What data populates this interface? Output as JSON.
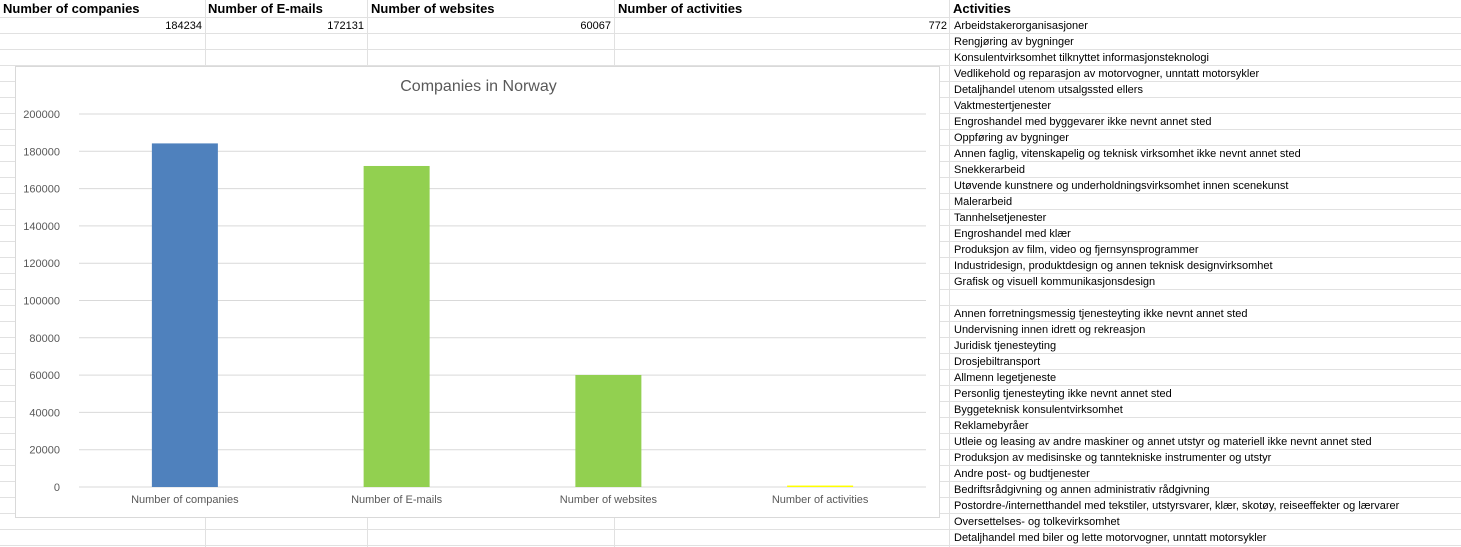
{
  "sheet": {
    "headers": [
      "Number of companies",
      "Number of E-mails",
      "Number of websites",
      "Number of activities",
      "Activities"
    ],
    "values": [
      "184234",
      "172131",
      "60067",
      "772"
    ],
    "activities": [
      "Arbeidstakerorganisasjoner",
      "Rengjøring av bygninger",
      "Konsulentvirksomhet tilknyttet informasjonsteknologi",
      "Vedlikehold og reparasjon av motorvogner, unntatt motorsykler",
      "Detaljhandel utenom utsalgssted ellers",
      "Vaktmestertjenester",
      "Engroshandel med byggevarer ikke nevnt annet sted",
      "Oppføring av bygninger",
      "Annen faglig, vitenskapelig og teknisk virksomhet ikke nevnt annet sted",
      "Snekkerarbeid",
      "Utøvende kunstnere og underholdningsvirksomhet innen scenekunst",
      "Malerarbeid",
      "Tannhelsetjenester",
      "Engroshandel med klær",
      "Produksjon av film, video og fjernsynsprogrammer",
      "Industridesign, produktdesign og annen teknisk designvirksomhet",
      "Grafisk og visuell kommunikasjonsdesign",
      "",
      "Annen forretningsmessig tjenesteyting ikke nevnt annet sted",
      "Undervisning innen idrett og rekreasjon",
      "Juridisk tjenesteyting",
      "Drosjebiltransport",
      "Allmenn legetjeneste",
      "Personlig tjenesteyting ikke nevnt annet sted",
      "Byggeteknisk konsulentvirksomhet",
      "Reklamebyråer",
      "Utleie og leasing av andre maskiner og annet utstyr og materiell ikke nevnt annet sted",
      "Produksjon av medisinske og tanntekniske instrumenter og utstyr",
      "Andre post- og budtjenester",
      "Bedriftsrådgivning og annen administrativ rådgivning",
      "Postordre-/internetthandel med tekstiler, utstyrsvarer, klær, skotøy, reiseeffekter og lærvarer",
      "Oversettelses- og tolkevirksomhet",
      "Detaljhandel med biler og lette motorvogner, unntatt motorsykler"
    ]
  },
  "chart_data": {
    "type": "bar",
    "title": "Companies in Norway",
    "categories": [
      "Number of companies",
      "Number of E-mails",
      "Number of websites",
      "Number of activities"
    ],
    "values": [
      184234,
      172131,
      60067,
      772
    ],
    "bar_colors": [
      "#4f81bd",
      "#92d050",
      "#92d050",
      "#ffff00"
    ],
    "ylim": [
      0,
      200000
    ],
    "yticks": [
      0,
      20000,
      40000,
      60000,
      80000,
      100000,
      120000,
      140000,
      160000,
      180000,
      200000
    ],
    "grid": true,
    "legend": "none",
    "xlabel": "",
    "ylabel": ""
  }
}
